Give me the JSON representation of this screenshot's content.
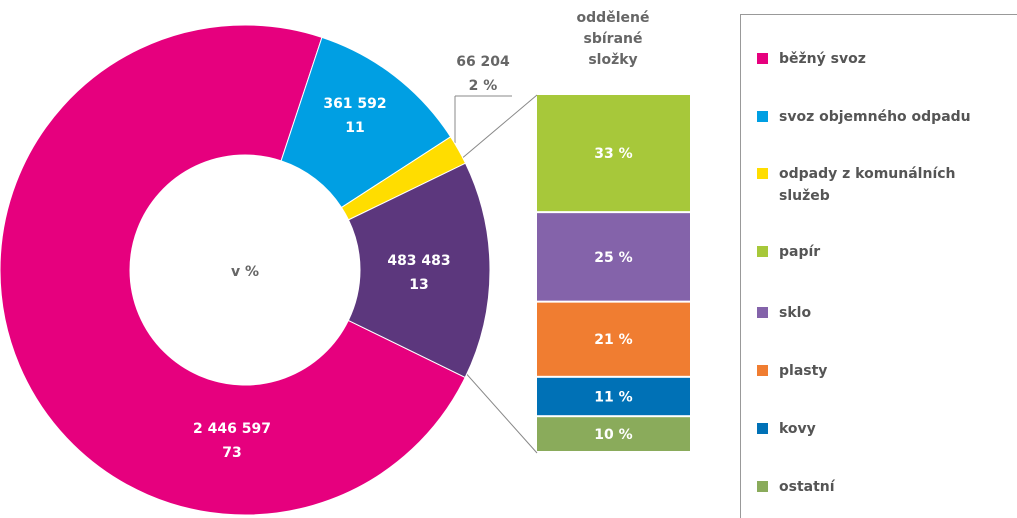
{
  "chart_data": [
    {
      "type": "pie",
      "center_label": "v %",
      "categories": [
        "běžný svoz",
        "svoz objemného odpadu",
        "odpady z komunálních služeb",
        null
      ],
      "values": [
        73,
        11,
        2,
        13
      ],
      "value_labels": [
        "73",
        "11",
        "2 %",
        "13"
      ],
      "amounts": [
        2446597,
        361592,
        66204,
        483483
      ],
      "amount_labels": [
        "2 446 597",
        "361 592",
        "66 204",
        "483 483"
      ],
      "colors": [
        "#e6007e",
        "#009fe3",
        "#ffdd00",
        "#5c377d"
      ]
    },
    {
      "type": "bar",
      "stacked": true,
      "title": "oddělené sbírané složky",
      "categories": [
        "papír",
        "sklo",
        "plasty",
        "kovy",
        "ostatní"
      ],
      "values": [
        33,
        25,
        21,
        11,
        10
      ],
      "value_labels": [
        "33 %",
        "25 %",
        "21 %",
        "11 %",
        "10 %"
      ],
      "colors": [
        "#a7c83a",
        "#8463aa",
        "#f07d31",
        "#0071b6",
        "#8aab5b"
      ]
    }
  ]
}
